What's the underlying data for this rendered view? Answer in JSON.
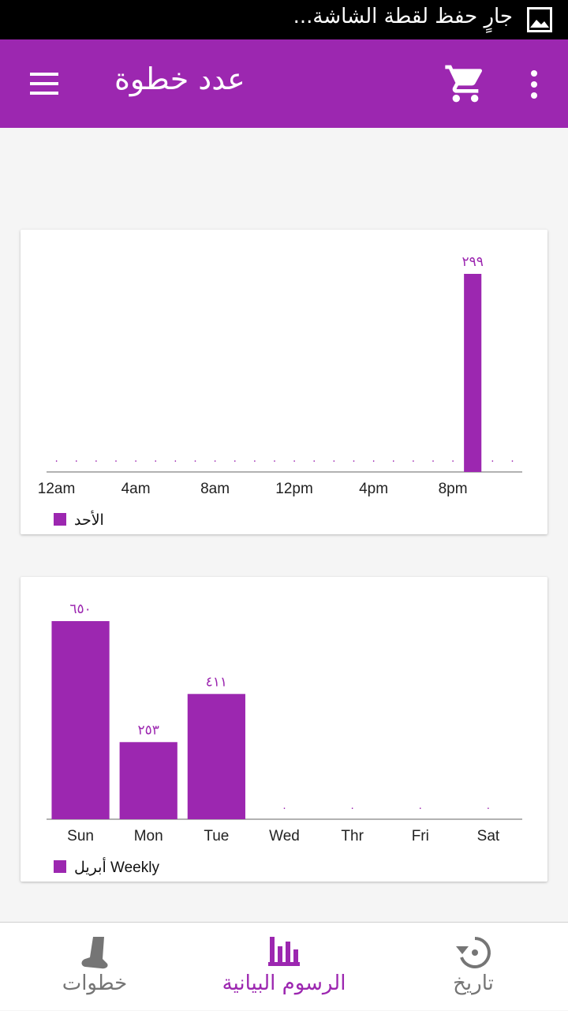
{
  "status_bar": {
    "notification_text": "جارٍ حفظ لقطة الشاشة...",
    "icon": "image-icon"
  },
  "app_bar": {
    "title": "عدد خطوة",
    "menu_icon": "hamburger-menu-icon",
    "cart_icon": "shopping-cart-icon",
    "more_icon": "more-vertical-icon",
    "background_color": "#9c27b0"
  },
  "accent_color": "#9c27b0",
  "chart_data": [
    {
      "type": "bar",
      "categories": [
        "12am",
        "1am",
        "2am",
        "3am",
        "4am",
        "5am",
        "6am",
        "7am",
        "8am",
        "9am",
        "10am",
        "11am",
        "12pm",
        "1pm",
        "2pm",
        "3pm",
        "4pm",
        "5pm",
        "6pm",
        "7pm",
        "8pm",
        "9pm",
        "10pm",
        "11pm"
      ],
      "tick_labels": [
        "12am",
        "4am",
        "8am",
        "12pm",
        "4pm",
        "8pm"
      ],
      "values": [
        0,
        0,
        0,
        0,
        0,
        0,
        0,
        0,
        0,
        0,
        0,
        0,
        0,
        0,
        0,
        0,
        0,
        0,
        0,
        0,
        0,
        299,
        0,
        0
      ],
      "data_labels": [
        "٠",
        "٠",
        "٠",
        "٠",
        "٠",
        "٠",
        "٠",
        "٠",
        "٠",
        "٠",
        "٠",
        "٠",
        "٠",
        "٠",
        "٠",
        "٠",
        "٠",
        "٠",
        "٠",
        "٠",
        "٠",
        "٢٩٩",
        "٠",
        "٠"
      ],
      "legend": "الأحد",
      "legend_position": "bottom-left",
      "color": "#9c27b0",
      "grid": false
    },
    {
      "type": "bar",
      "categories": [
        "Sun",
        "Mon",
        "Tue",
        "Wed",
        "Thr",
        "Fri",
        "Sat"
      ],
      "tick_labels": [
        "Sun",
        "Mon",
        "Tue",
        "Wed",
        "Thr",
        "Fri",
        "Sat"
      ],
      "values": [
        650,
        253,
        411,
        0,
        0,
        0,
        0
      ],
      "data_labels": [
        "٦٥٠",
        "٢٥٣",
        "٤١١",
        "٠",
        "٠",
        "٠",
        "٠"
      ],
      "legend": "أبريل Weekly",
      "legend_position": "bottom-left",
      "color": "#9c27b0",
      "grid": false
    }
  ],
  "bottom_nav": {
    "items": [
      {
        "label": "خطوات",
        "icon": "foot-icon",
        "active": false
      },
      {
        "label": "الرسوم البيانية",
        "icon": "bar-chart-icon",
        "active": true
      },
      {
        "label": "تاريخ",
        "icon": "history-icon",
        "active": false
      }
    ],
    "active_color": "#9c27b0",
    "inactive_color": "#757575"
  }
}
